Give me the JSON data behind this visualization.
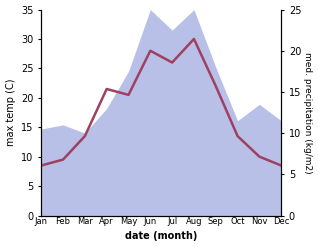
{
  "months": [
    "Jan",
    "Feb",
    "Mar",
    "Apr",
    "May",
    "Jun",
    "Jul",
    "Aug",
    "Sep",
    "Oct",
    "Nov",
    "Dec"
  ],
  "month_indices": [
    0,
    1,
    2,
    3,
    4,
    5,
    6,
    7,
    8,
    9,
    10,
    11
  ],
  "temperature": [
    8.5,
    9.5,
    13.5,
    21.5,
    20.5,
    28.0,
    26.0,
    30.0,
    22.0,
    13.5,
    10.0,
    8.5
  ],
  "precipitation": [
    10.5,
    11.0,
    10.0,
    13.0,
    17.5,
    25.0,
    22.5,
    25.0,
    18.0,
    11.5,
    13.5,
    11.5
  ],
  "temp_color": "#a04060",
  "precip_color": "#b8c0e8",
  "temp_ylim": [
    0,
    35
  ],
  "precip_ylim": [
    0,
    25
  ],
  "temp_yticks": [
    0,
    5,
    10,
    15,
    20,
    25,
    30,
    35
  ],
  "precip_yticks": [
    0,
    5,
    10,
    15,
    20,
    25
  ],
  "ylabel_left": "max temp (C)",
  "ylabel_right": "med. precipitation (kg/m2)",
  "xlabel": "date (month)",
  "background_color": "#ffffff"
}
